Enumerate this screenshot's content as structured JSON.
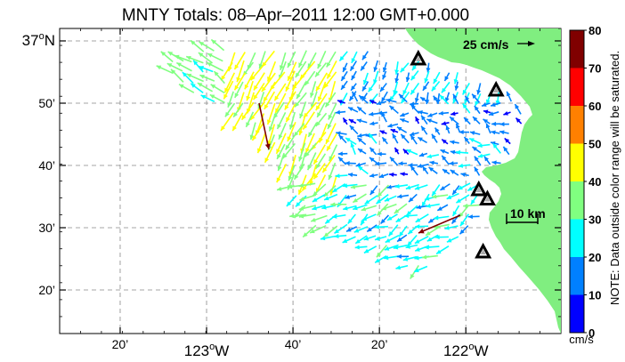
{
  "title": "MNTY Totals: 08–Apr–2011 12:00 GMT+0.000",
  "lat_labels": [
    {
      "text": "37",
      "deg": true,
      "suffix": "N",
      "lat": 37.0
    },
    {
      "text": "50’",
      "lat": 36.8333
    },
    {
      "text": "40’",
      "lat": 36.6667
    },
    {
      "text": "30’",
      "lat": 36.5
    },
    {
      "text": "20’",
      "lat": 36.3333
    }
  ],
  "lon_labels": [
    {
      "text": "20’",
      "lon": -123.3333
    },
    {
      "text": "123",
      "deg": true,
      "suffix": "W",
      "lon": -123.0
    },
    {
      "text": "40’",
      "lon": -122.6667
    },
    {
      "text": "20’",
      "lon": -122.3333
    },
    {
      "text": "122",
      "deg": true,
      "suffix": "W",
      "lon": -122.0
    }
  ],
  "extent": {
    "lon": [
      -123.5667,
      -121.6333
    ],
    "lat": [
      36.2167,
      37.0333
    ]
  },
  "colorbar": {
    "ticks": [
      "0",
      "10",
      "20",
      "30",
      "40",
      "50",
      "60",
      "70",
      "80"
    ],
    "colors": [
      "#0000ff",
      "#0080ff",
      "#00ffff",
      "#80ff80",
      "#ffff00",
      "#ff8000",
      "#ff0000",
      "#800000"
    ],
    "units": "cm/s",
    "note": "NOTE: Data outside color range will be saturated."
  },
  "reference_vector": {
    "label": "25 cm/s",
    "speed": 25
  },
  "scale_bar": {
    "label": "10 km"
  },
  "land_color": "#80ee80",
  "sites": [
    {
      "lon": -122.1833,
      "lat": 36.95
    },
    {
      "lon": -121.8833,
      "lat": 36.8667
    },
    {
      "lon": -121.95,
      "lat": 36.6
    },
    {
      "lon": -121.9167,
      "lat": 36.575
    },
    {
      "lon": -121.9333,
      "lat": 36.4333
    }
  ]
}
